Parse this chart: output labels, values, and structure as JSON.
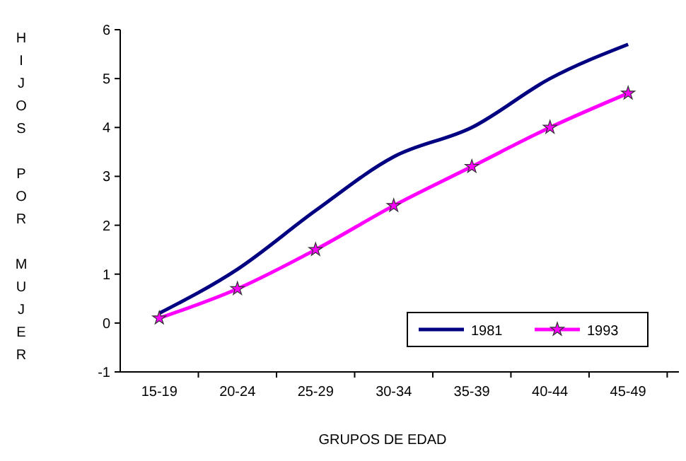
{
  "chart_data": {
    "type": "line",
    "xlabel": "GRUPOS DE EDAD",
    "ylabel": "HIJOS POR MUJER",
    "categories": [
      "15-19",
      "20-24",
      "25-29",
      "30-34",
      "35-39",
      "40-44",
      "45-49"
    ],
    "series": [
      {
        "name": "1981",
        "color": "#000080",
        "marker": "none",
        "values": [
          0.2,
          1.1,
          2.3,
          3.4,
          4.0,
          5.0,
          5.7
        ]
      },
      {
        "name": "1993",
        "color": "#ff00ff",
        "marker": "star",
        "values": [
          0.1,
          0.7,
          1.5,
          2.4,
          3.2,
          4.0,
          4.7
        ]
      }
    ],
    "ylim": [
      -1,
      6
    ],
    "yticks": [
      -1,
      0,
      1,
      2,
      3,
      4,
      5,
      6
    ],
    "grid": false,
    "legend": "bottom right"
  }
}
